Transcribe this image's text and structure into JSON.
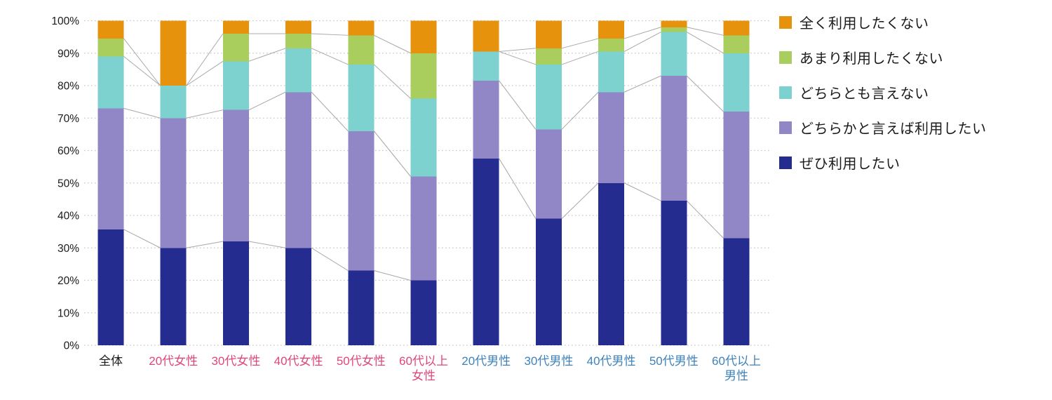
{
  "background_color": "#ffffff",
  "chart_data": {
    "type": "bar",
    "subtype": "stacked-100-percent-column",
    "title": "",
    "xlabel": "",
    "ylabel": "",
    "grid": "horizontal dotted lines on",
    "legend_position": "right",
    "y_axis": {
      "min": 0,
      "max": 100,
      "tick_step": 10,
      "tick_labels_top_to_bottom": [
        "100%",
        "90%",
        "80%",
        "70%",
        "60%",
        "50%",
        "40%",
        "30%",
        "20%",
        "10%",
        "0%"
      ]
    },
    "categories": [
      {
        "label": "全体",
        "line2": "",
        "group": "overall"
      },
      {
        "label": "20代女性",
        "line2": "",
        "group": "female"
      },
      {
        "label": "30代女性",
        "line2": "",
        "group": "female"
      },
      {
        "label": "40代女性",
        "line2": "",
        "group": "female"
      },
      {
        "label": "50代女性",
        "line2": "",
        "group": "female"
      },
      {
        "label": "60代以上",
        "line2": "女性",
        "group": "female"
      },
      {
        "label": "20代男性",
        "line2": "",
        "group": "male"
      },
      {
        "label": "30代男性",
        "line2": "",
        "group": "male"
      },
      {
        "label": "40代男性",
        "line2": "",
        "group": "male"
      },
      {
        "label": "50代男性",
        "line2": "",
        "group": "male"
      },
      {
        "label": "60代以上",
        "line2": "男性",
        "group": "male"
      }
    ],
    "category_label_colors": {
      "overall": "#1a1a1a",
      "female": "#e04679",
      "male": "#3e82bb"
    },
    "series_bottom_to_top": [
      {
        "name": "ぜひ利用したい",
        "color": "#252c90",
        "values": [
          35.7,
          30,
          32,
          30,
          23,
          20,
          57.5,
          39,
          50,
          44.5,
          33
        ]
      },
      {
        "name": "どちらかと言えば利用したい",
        "color": "#9187c6",
        "values": [
          37.3,
          40,
          40.5,
          48,
          43,
          32,
          24,
          27.5,
          28,
          38.5,
          39
        ]
      },
      {
        "name": "どちらとも言えない",
        "color": "#7dd2cf",
        "values": [
          16,
          10,
          15,
          13.5,
          20.5,
          24,
          9,
          20,
          12.5,
          13.5,
          18
        ]
      },
      {
        "name": "あまり利用したくない",
        "color": "#a9ce5d",
        "values": [
          5.5,
          0,
          8.5,
          4.5,
          9,
          14,
          0,
          5,
          4,
          1.5,
          5.5
        ]
      },
      {
        "name": "全く利用したくない",
        "color": "#e6920c",
        "values": [
          5.5,
          20,
          4,
          4,
          4.5,
          10,
          9.5,
          8.5,
          5.5,
          2,
          4.5
        ]
      }
    ],
    "legend_items_top_to_bottom": [
      {
        "name": "全く利用したくない",
        "color": "#e6920c"
      },
      {
        "name": "あまり利用したくない",
        "color": "#a9ce5d"
      },
      {
        "name": "どちらとも言えない",
        "color": "#7dd2cf"
      },
      {
        "name": "どちらかと言えば利用したい",
        "color": "#9187c6"
      },
      {
        "name": "ぜひ利用したい",
        "color": "#252c90"
      }
    ],
    "connector_chains": [
      [
        0,
        1,
        2,
        3,
        4,
        5
      ],
      [
        6,
        7,
        8,
        9,
        10
      ]
    ],
    "connector_color": "#a8a8a8",
    "grid_color": "#c6c6c6",
    "tick_label_color": "#1a1a1a"
  }
}
